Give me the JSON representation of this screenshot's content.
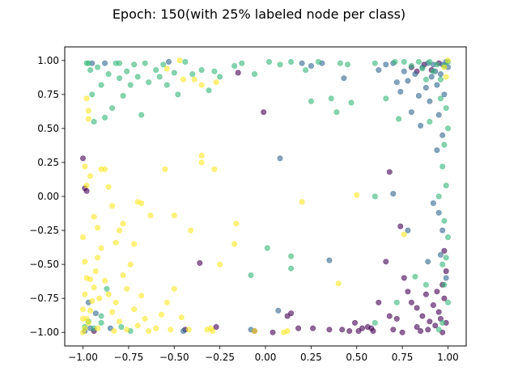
{
  "figure": {
    "title": "Epoch: 150(with 25% labeled node per class)"
  },
  "chart_data": {
    "type": "scatter",
    "title": "Epoch: 150(with 25% labeled node per class)",
    "xlabel": "",
    "ylabel": "",
    "xlim": [
      -1.1,
      1.1
    ],
    "ylim": [
      -1.1,
      1.1
    ],
    "xticks": [
      -1.0,
      -0.75,
      -0.5,
      -0.25,
      0.0,
      0.25,
      0.5,
      0.75,
      1.0
    ],
    "yticks": [
      -1.0,
      -0.75,
      -0.5,
      -0.25,
      0.0,
      0.25,
      0.5,
      0.75,
      1.0
    ],
    "xtick_labels": [
      "−1.00",
      "−0.75",
      "−0.50",
      "−0.25",
      "0.00",
      "0.25",
      "0.50",
      "0.75",
      "1.00"
    ],
    "ytick_labels": [
      "−1.00",
      "−0.75",
      "−0.50",
      "−0.25",
      "0.00",
      "0.25",
      "0.50",
      "0.75",
      "1.00"
    ],
    "grid": false,
    "legend": "none",
    "marker_alpha": 0.6,
    "series": [
      {
        "color": "#440154",
        "points": [
          [
            -1.0,
            0.28
          ],
          [
            -0.99,
            0.06
          ],
          [
            -0.98,
            0.04
          ],
          [
            -0.94,
            -0.99
          ],
          [
            -0.44,
            -0.98
          ],
          [
            -0.36,
            -0.49
          ],
          [
            -0.27,
            -0.96
          ],
          [
            -0.15,
            0.91
          ],
          [
            -0.01,
            0.62
          ],
          [
            0.12,
            -0.88
          ],
          [
            0.14,
            -0.86
          ],
          [
            0.18,
            -0.97
          ],
          [
            0.26,
            -0.97
          ],
          [
            0.35,
            -0.98
          ],
          [
            0.42,
            -0.98
          ],
          [
            0.49,
            -0.93
          ],
          [
            0.53,
            -0.97
          ],
          [
            0.58,
            -0.97
          ],
          [
            0.62,
            -0.78
          ],
          [
            0.66,
            -0.48
          ],
          [
            0.68,
            -0.88
          ],
          [
            0.72,
            -0.9
          ],
          [
            0.74,
            -0.22
          ],
          [
            0.76,
            -0.6
          ],
          [
            0.78,
            -0.7
          ],
          [
            0.8,
            -0.78
          ],
          [
            0.83,
            -0.82
          ],
          [
            0.86,
            -0.88
          ],
          [
            0.88,
            -0.72
          ],
          [
            0.9,
            -0.92
          ],
          [
            0.92,
            -0.8
          ],
          [
            0.93,
            -0.95
          ],
          [
            0.94,
            -0.7
          ],
          [
            0.95,
            -0.85
          ],
          [
            0.96,
            -0.9
          ],
          [
            0.97,
            -0.65
          ],
          [
            0.98,
            -0.75
          ],
          [
            0.99,
            -0.93
          ],
          [
            0.99,
            -0.55
          ],
          [
            0.98,
            -0.4
          ],
          [
            0.8,
            0.95
          ],
          [
            0.83,
            0.92
          ],
          [
            0.87,
            0.97
          ],
          [
            0.91,
            0.93
          ],
          [
            0.95,
            0.98
          ],
          [
            0.68,
            0.18
          ],
          [
            0.59,
            -0.99
          ],
          [
            0.7,
            -0.98
          ],
          [
            0.75,
            -1.0
          ],
          [
            0.85,
            -0.99
          ],
          [
            0.89,
            -0.98
          ],
          [
            0.97,
            -1.0
          ],
          [
            -0.06,
            -0.99
          ],
          [
            0.04,
            -1.0
          ],
          [
            0.46,
            -0.99
          ],
          [
            0.51,
            -0.99
          ],
          [
            0.56,
            -0.96
          ],
          [
            0.83,
            -0.96
          ]
        ]
      },
      {
        "color": "#31688e",
        "points": [
          [
            -0.99,
            -0.99
          ],
          [
            -0.96,
            -0.97
          ],
          [
            -0.93,
            -0.86
          ],
          [
            -0.97,
            -0.78
          ],
          [
            -0.95,
            0.98
          ],
          [
            -0.88,
            0.98
          ],
          [
            -0.85,
            -0.97
          ],
          [
            -0.53,
            0.99
          ],
          [
            -0.45,
            -0.99
          ],
          [
            0.08,
            0.28
          ],
          [
            0.2,
            0.98
          ],
          [
            0.25,
            0.96
          ],
          [
            0.31,
            0.98
          ],
          [
            0.35,
            -0.47
          ],
          [
            0.43,
            0.87
          ],
          [
            0.62,
            0.93
          ],
          [
            0.66,
            0.97
          ],
          [
            0.7,
            0.98
          ],
          [
            0.72,
            0.84
          ],
          [
            0.74,
            0.77
          ],
          [
            0.76,
            0.92
          ],
          [
            0.78,
            0.85
          ],
          [
            0.8,
            0.62
          ],
          [
            0.82,
            0.9
          ],
          [
            0.84,
            0.74
          ],
          [
            0.86,
            0.95
          ],
          [
            0.88,
            0.8
          ],
          [
            0.89,
            0.98
          ],
          [
            0.9,
            0.7
          ],
          [
            0.91,
            0.88
          ],
          [
            0.92,
            0.97
          ],
          [
            0.93,
            0.92
          ],
          [
            0.94,
            0.82
          ],
          [
            0.95,
            0.6
          ],
          [
            0.96,
            0.9
          ],
          [
            0.97,
            0.97
          ],
          [
            0.98,
            0.75
          ],
          [
            0.99,
            0.99
          ],
          [
            1.0,
            0.95
          ],
          [
            0.97,
            0.45
          ],
          [
            0.7,
            0.02
          ],
          [
            0.92,
            -0.05
          ],
          [
            0.95,
            -0.12
          ],
          [
            0.97,
            -0.25
          ],
          [
            0.78,
            -0.25
          ],
          [
            0.96,
            -0.43
          ],
          [
            0.99,
            -0.6
          ],
          [
            0.89,
            -0.48
          ],
          [
            0.85,
            0.52
          ],
          [
            0.94,
            0.34
          ],
          [
            -0.08,
            -0.98
          ],
          [
            0.07,
            -0.84
          ]
        ]
      },
      {
        "color": "#35b779",
        "points": [
          [
            -0.97,
            0.98
          ],
          [
            -0.96,
            0.93
          ],
          [
            -0.95,
            0.75
          ],
          [
            -0.94,
            0.55
          ],
          [
            -0.92,
            0.95
          ],
          [
            -0.9,
            0.82
          ],
          [
            -0.88,
            0.58
          ],
          [
            -0.86,
            0.9
          ],
          [
            -0.84,
            0.65
          ],
          [
            -0.82,
            0.98
          ],
          [
            -0.8,
            0.87
          ],
          [
            -0.78,
            0.74
          ],
          [
            -0.76,
            0.92
          ],
          [
            -0.74,
            0.82
          ],
          [
            -0.72,
            0.97
          ],
          [
            -0.7,
            0.88
          ],
          [
            -0.68,
            0.6
          ],
          [
            -0.66,
            0.98
          ],
          [
            -0.64,
            0.84
          ],
          [
            -0.6,
            0.93
          ],
          [
            -0.58,
            0.88
          ],
          [
            -0.56,
            0.97
          ],
          [
            -0.54,
            0.82
          ],
          [
            -0.5,
            0.91
          ],
          [
            -0.48,
            0.75
          ],
          [
            -0.44,
            0.99
          ],
          [
            -0.4,
            0.9
          ],
          [
            -0.35,
            0.93
          ],
          [
            -0.31,
            0.78
          ],
          [
            -0.28,
            0.92
          ],
          [
            -0.25,
            0.88
          ],
          [
            -0.17,
            0.96
          ],
          [
            -0.13,
            0.98
          ],
          [
            -0.06,
            0.9
          ],
          [
            0.02,
            0.99
          ],
          [
            0.08,
            0.97
          ],
          [
            0.14,
            0.99
          ],
          [
            0.22,
            0.93
          ],
          [
            0.25,
            0.7
          ],
          [
            0.29,
            0.99
          ],
          [
            0.36,
            0.72
          ],
          [
            0.39,
            0.62
          ],
          [
            0.41,
            0.98
          ],
          [
            0.47,
            0.69
          ],
          [
            0.6,
            0.98
          ],
          [
            0.66,
            0.72
          ],
          [
            0.71,
            0.99
          ],
          [
            0.73,
            0.57
          ],
          [
            0.76,
            0.99
          ],
          [
            0.8,
            0.96
          ],
          [
            0.84,
            0.99
          ],
          [
            0.86,
            0.94
          ],
          [
            0.88,
            0.86
          ],
          [
            0.9,
            0.99
          ],
          [
            0.92,
            0.92
          ],
          [
            0.94,
            0.97
          ],
          [
            0.96,
            0.86
          ],
          [
            0.98,
            0.96
          ],
          [
            1.0,
            0.99
          ],
          [
            0.99,
            0.65
          ],
          [
            1.0,
            0.5
          ],
          [
            0.98,
            0.38
          ],
          [
            0.97,
            0.22
          ],
          [
            0.99,
            0.08
          ],
          [
            0.95,
            0.0
          ],
          [
            0.9,
            0.55
          ],
          [
            0.96,
            0.72
          ],
          [
            0.98,
            -0.18
          ],
          [
            1.0,
            -0.3
          ],
          [
            0.99,
            -0.45
          ],
          [
            0.97,
            -0.5
          ],
          [
            0.98,
            -0.65
          ],
          [
            1.0,
            -0.78
          ],
          [
            0.97,
            -0.93
          ],
          [
            0.88,
            -0.65
          ],
          [
            0.72,
            -0.78
          ],
          [
            0.82,
            -0.59
          ],
          [
            0.6,
            -0.93
          ],
          [
            0.95,
            -0.98
          ],
          [
            0.14,
            -0.53
          ],
          [
            0.14,
            -0.44
          ],
          [
            0.6,
            0.0
          ],
          [
            -0.08,
            -0.58
          ],
          [
            0.01,
            -0.38
          ],
          [
            -0.97,
            -0.92
          ],
          [
            -0.94,
            -0.97
          ],
          [
            -0.9,
            -0.93
          ],
          [
            -0.79,
            -0.96
          ],
          [
            -0.87,
            -0.68
          ],
          [
            -0.9,
            -0.88
          ],
          [
            -0.8,
            0.98
          ],
          [
            -0.98,
            0.98
          ],
          [
            -0.74,
            -0.99
          ],
          [
            -0.99,
            -0.96
          ],
          [
            0.45,
            0.97
          ]
        ]
      },
      {
        "color": "#fde725",
        "points": [
          [
            -1.0,
            -0.3
          ],
          [
            -0.99,
            -0.48
          ],
          [
            -0.98,
            -0.6
          ],
          [
            -0.99,
            -0.72
          ],
          [
            -1.0,
            -0.83
          ],
          [
            -0.98,
            -0.9
          ],
          [
            -0.99,
            -0.97
          ],
          [
            -1.0,
            -1.0
          ],
          [
            -0.97,
            -0.93
          ],
          [
            -0.96,
            -0.84
          ],
          [
            -0.95,
            -0.77
          ],
          [
            -0.94,
            -0.67
          ],
          [
            -0.93,
            -0.55
          ],
          [
            -0.92,
            -0.45
          ],
          [
            -0.9,
            -0.38
          ],
          [
            -0.88,
            -0.62
          ],
          [
            -0.86,
            -0.72
          ],
          [
            -0.84,
            -0.85
          ],
          [
            -0.82,
            -0.78
          ],
          [
            -0.8,
            -0.92
          ],
          [
            -0.78,
            -0.58
          ],
          [
            -0.76,
            -0.68
          ],
          [
            -0.74,
            -0.5
          ],
          [
            -0.72,
            -0.83
          ],
          [
            -0.7,
            -0.95
          ],
          [
            -0.68,
            -0.73
          ],
          [
            -0.66,
            -0.9
          ],
          [
            -0.64,
            -0.99
          ],
          [
            -0.6,
            -0.97
          ],
          [
            -0.57,
            -0.87
          ],
          [
            -0.54,
            -0.78
          ],
          [
            -0.5,
            -0.68
          ],
          [
            -0.46,
            -0.89
          ],
          [
            -0.42,
            -0.98
          ],
          [
            -0.99,
            0.22
          ],
          [
            -0.98,
            0.08
          ],
          [
            -0.96,
            0.15
          ],
          [
            -0.94,
            -0.15
          ],
          [
            -0.92,
            -0.23
          ],
          [
            -0.9,
            0.2
          ],
          [
            -0.88,
            0.2
          ],
          [
            -0.86,
            0.07
          ],
          [
            -0.84,
            -0.07
          ],
          [
            -0.82,
            -0.34
          ],
          [
            -0.8,
            -0.25
          ],
          [
            -0.78,
            -0.2
          ],
          [
            -0.72,
            -0.35
          ],
          [
            -0.7,
            -0.04
          ],
          [
            -0.68,
            -0.05
          ],
          [
            -0.63,
            -0.14
          ],
          [
            -0.55,
            0.2
          ],
          [
            -0.5,
            -0.14
          ],
          [
            -0.41,
            -0.25
          ],
          [
            -0.35,
            0.3
          ],
          [
            -0.35,
            0.25
          ],
          [
            -0.28,
            0.2
          ],
          [
            -0.25,
            -0.5
          ],
          [
            -0.17,
            -0.35
          ],
          [
            -0.16,
            -0.2
          ],
          [
            0.2,
            -0.04
          ],
          [
            0.4,
            -0.64
          ],
          [
            0.5,
            0.01
          ],
          [
            0.76,
            -0.28
          ],
          [
            0.98,
            0.95
          ],
          [
            1.0,
            1.0
          ],
          [
            0.99,
            0.88
          ],
          [
            -0.97,
            0.63
          ],
          [
            -0.97,
            0.57
          ],
          [
            -0.98,
            0.72
          ],
          [
            -0.45,
            0.86
          ],
          [
            -0.47,
            1.0
          ],
          [
            -0.54,
            0.94
          ],
          [
            -0.27,
            0.84
          ],
          [
            -0.32,
            -0.98
          ],
          [
            -0.29,
            -0.99
          ],
          [
            -0.06,
            -0.99
          ],
          [
            0.12,
            -0.99
          ],
          [
            -0.52,
            -0.98
          ],
          [
            -0.76,
            -0.98
          ],
          [
            0.1,
            -1.0
          ],
          [
            -0.83,
            -0.99
          ],
          [
            -0.92,
            -0.97
          ],
          [
            -1.0,
            -0.9
          ],
          [
            -0.96,
            -0.61
          ],
          [
            -0.91,
            -0.75
          ],
          [
            -0.3,
            -0.97
          ],
          [
            -0.39,
            0.86
          ],
          [
            -0.35,
            0.82
          ]
        ]
      }
    ]
  }
}
